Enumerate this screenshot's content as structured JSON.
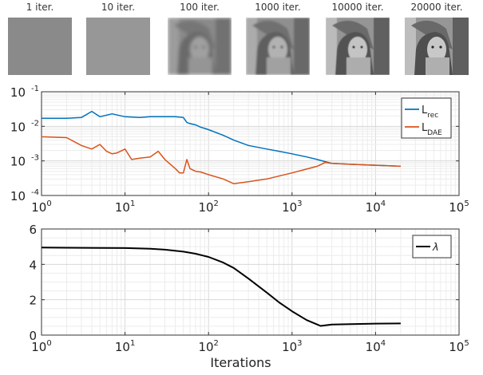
{
  "thumbnails": [
    {
      "label": "1 iter.",
      "kind": "noise",
      "gray": "#8a8a8a"
    },
    {
      "label": "10 iter.",
      "kind": "noise",
      "gray": "#979797"
    },
    {
      "label": "100 iter.",
      "kind": "face",
      "blur": 2.2,
      "contrast": 0.45
    },
    {
      "label": "1000 iter.",
      "kind": "face",
      "blur": 1.4,
      "contrast": 0.7
    },
    {
      "label": "10000 iter.",
      "kind": "face",
      "blur": 0.5,
      "contrast": 0.95
    },
    {
      "label": "20000 iter.",
      "kind": "face",
      "blur": 0.3,
      "contrast": 1.0
    }
  ],
  "chart_data": [
    {
      "type": "line",
      "xscale": "log",
      "yscale": "log",
      "xlim": [
        1,
        100000
      ],
      "ylim": [
        0.0001,
        0.1
      ],
      "xticks": [
        1,
        10,
        100,
        1000,
        10000,
        100000
      ],
      "xticklabels": [
        [
          "10",
          "0"
        ],
        [
          "10",
          "1"
        ],
        [
          "10",
          "2"
        ],
        [
          "10",
          "3"
        ],
        [
          "10",
          "4"
        ],
        [
          "10",
          "5"
        ]
      ],
      "yticks": [
        0.0001,
        0.001,
        0.01,
        0.1
      ],
      "yticklabels": [
        [
          "10",
          "-4"
        ],
        [
          "10",
          "-3"
        ],
        [
          "10",
          "-2"
        ],
        [
          "10",
          "-1"
        ]
      ],
      "grid": true,
      "legend_position": "top-right",
      "series": [
        {
          "name": "L",
          "subscript": "rec",
          "color": "#0072BD",
          "x": [
            1,
            2,
            3,
            4,
            5,
            7,
            10,
            15,
            20,
            30,
            40,
            50,
            55,
            60,
            70,
            80,
            100,
            150,
            200,
            300,
            500,
            700,
            1000,
            1500,
            2000,
            2500,
            3000,
            5000,
            10000,
            20000
          ],
          "y": [
            0.017,
            0.017,
            0.018,
            0.027,
            0.019,
            0.023,
            0.019,
            0.018,
            0.019,
            0.019,
            0.019,
            0.018,
            0.013,
            0.012,
            0.011,
            0.0095,
            0.008,
            0.0055,
            0.004,
            0.0028,
            0.0022,
            0.0019,
            0.0016,
            0.0013,
            0.0011,
            0.00095,
            0.00085,
            0.0008,
            0.00075,
            0.0007
          ]
        },
        {
          "name": "L",
          "subscript": "DAE",
          "color": "#D95319",
          "x": [
            1,
            2,
            3,
            4,
            5,
            6,
            7,
            8,
            10,
            12,
            15,
            20,
            25,
            30,
            40,
            45,
            50,
            55,
            60,
            70,
            80,
            100,
            150,
            200,
            300,
            500,
            1000,
            2000,
            2500,
            3000,
            5000,
            10000,
            20000
          ],
          "y": [
            0.005,
            0.0047,
            0.0028,
            0.0022,
            0.003,
            0.0019,
            0.0016,
            0.0017,
            0.0022,
            0.0011,
            0.0012,
            0.0013,
            0.0019,
            0.0011,
            0.0006,
            0.00045,
            0.00045,
            0.0011,
            0.0006,
            0.0005,
            0.00048,
            0.0004,
            0.0003,
            0.00022,
            0.00025,
            0.0003,
            0.00045,
            0.0007,
            0.0009,
            0.00085,
            0.0008,
            0.00075,
            0.0007
          ]
        }
      ]
    },
    {
      "type": "line",
      "xscale": "log",
      "yscale": "linear",
      "xlim": [
        1,
        100000
      ],
      "ylim": [
        0,
        6
      ],
      "xticks": [
        1,
        10,
        100,
        1000,
        10000,
        100000
      ],
      "xticklabels": [
        [
          "10",
          "0"
        ],
        [
          "10",
          "1"
        ],
        [
          "10",
          "2"
        ],
        [
          "10",
          "3"
        ],
        [
          "10",
          "4"
        ],
        [
          "10",
          "5"
        ]
      ],
      "yticks": [
        0,
        2,
        4,
        6
      ],
      "yticklabels": [
        [
          "0",
          ""
        ],
        [
          "2",
          ""
        ],
        [
          "4",
          ""
        ],
        [
          "6",
          ""
        ]
      ],
      "grid": true,
      "xlabel": "Iterations",
      "legend_position": "top-right",
      "series": [
        {
          "name": "λ",
          "subscript": "",
          "color": "#000000",
          "x": [
            1,
            2,
            5,
            10,
            20,
            30,
            50,
            70,
            100,
            150,
            200,
            300,
            500,
            700,
            1000,
            1500,
            2000,
            2200,
            2500,
            3000,
            5000,
            10000,
            20000
          ],
          "y": [
            4.95,
            4.94,
            4.93,
            4.92,
            4.88,
            4.83,
            4.72,
            4.6,
            4.42,
            4.1,
            3.8,
            3.2,
            2.4,
            1.85,
            1.35,
            0.85,
            0.6,
            0.52,
            0.55,
            0.6,
            0.62,
            0.65,
            0.66
          ]
        }
      ]
    }
  ]
}
